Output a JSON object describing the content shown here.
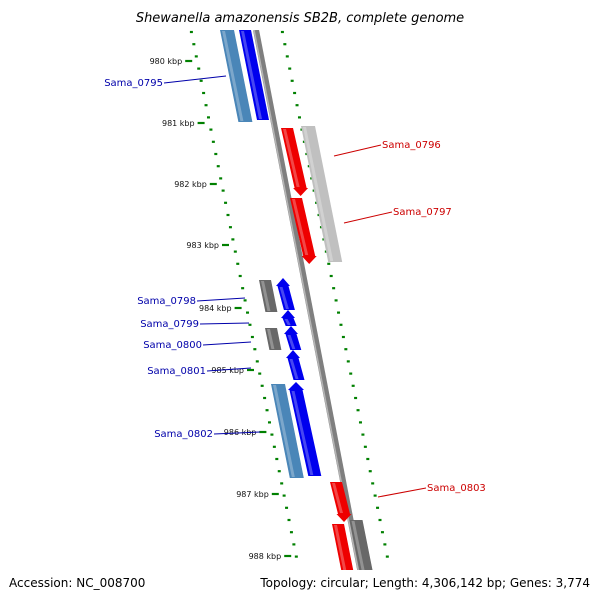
{
  "title": "Shewanella amazonensis SB2B, complete genome",
  "accession_text": "Accession: NC_008700",
  "topology_text": "Topology: circular; Length: 4,306,142 bp; Genes: 3,774",
  "colors": {
    "forward_cds": "#0000ee",
    "reverse_cds": "#ee0000",
    "forward_feature": "#4a86b8",
    "reverse_feature": "#c0c0c0",
    "other_feature": "#686868",
    "backbone": "#7f7f7f",
    "ticks": "#008000",
    "label_forward": "#0000aa",
    "label_reverse": "#cc0000"
  },
  "ticks": [
    {
      "label": "980 kbp"
    },
    {
      "label": "981 kbp"
    },
    {
      "label": "982 kbp"
    },
    {
      "label": "983 kbp"
    },
    {
      "label": "984 kbp"
    },
    {
      "label": "985 kbp"
    },
    {
      "label": "986 kbp"
    },
    {
      "label": "987 kbp"
    },
    {
      "label": "988 kbp"
    }
  ],
  "genes": [
    {
      "name": "Sama_0795",
      "strand": "forward"
    },
    {
      "name": "Sama_0796",
      "strand": "reverse"
    },
    {
      "name": "Sama_0797",
      "strand": "reverse"
    },
    {
      "name": "Sama_0798",
      "strand": "forward"
    },
    {
      "name": "Sama_0799",
      "strand": "forward"
    },
    {
      "name": "Sama_0800",
      "strand": "forward"
    },
    {
      "name": "Sama_0801",
      "strand": "forward"
    },
    {
      "name": "Sama_0802",
      "strand": "forward"
    },
    {
      "name": "Sama_0803",
      "strand": "reverse"
    }
  ]
}
